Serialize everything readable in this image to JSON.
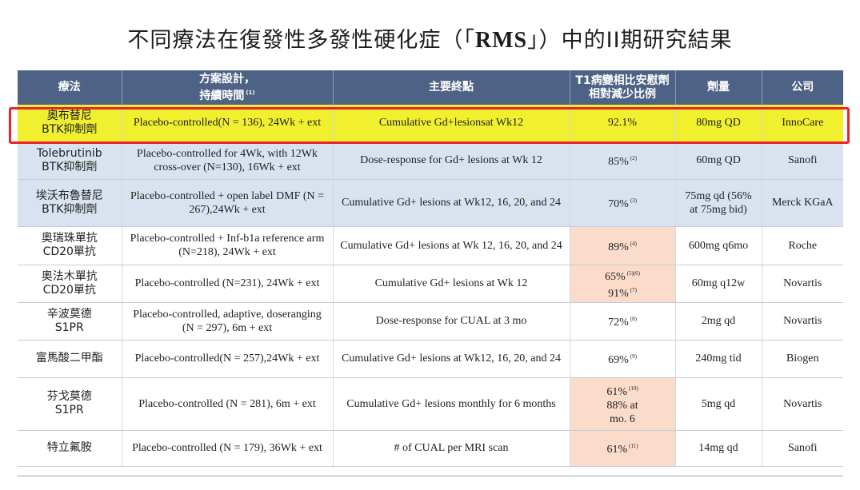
{
  "title": {
    "before": "不同療法在復發性多發性硬化症（「",
    "abbr": "RMS",
    "after": "」）中的II期研究結果"
  },
  "table": {
    "headers": {
      "therapy": "療法",
      "design_line1": "方案設計，",
      "design_line2": "持續時間",
      "design_note": "(1)",
      "endpoint": "主要終點",
      "reduction_line1": "T1病變相比安慰劑",
      "reduction_line2": "相對減少比例",
      "dose": "劑量",
      "company": "公司"
    },
    "rows": [
      {
        "therapy": [
          "奧布替尼",
          "BTK抑制劑"
        ],
        "design": "Placebo-controlled(N = 136), 24Wk + ext",
        "endpoint": "Cumulative Gd+lesionsat Wk12",
        "reduction": [
          {
            "text": "92.1%",
            "note": ""
          }
        ],
        "dose": "80mg QD",
        "company": "InnoCare"
      },
      {
        "therapy": [
          "Tolebrutinib",
          "BTK抑制劑"
        ],
        "design": "Placebo-controlled for 4Wk, with 12Wk cross-over (N=130), 16Wk + ext",
        "endpoint": "Dose-response for Gd+ lesions at Wk 12",
        "reduction": [
          {
            "text": "85%",
            "note": "(2)"
          }
        ],
        "dose": "60mg QD",
        "company": "Sanofi"
      },
      {
        "therapy": [
          "埃沃布魯替尼",
          "BTK抑制劑"
        ],
        "design": "Placebo-controlled + open label DMF (N = 267),24Wk + ext",
        "endpoint": "Cumulative Gd+ lesions at Wk12, 16, 20, and 24",
        "reduction": [
          {
            "text": "70%",
            "note": "(3)"
          }
        ],
        "dose": "75mg qd (56% at 75mg bid)",
        "company": "Merck KGaA"
      },
      {
        "therapy": [
          "奧瑞珠單抗",
          "CD20單抗"
        ],
        "design": "Placebo-controlled + Inf-b1a reference arm (N=218), 24Wk + ext",
        "endpoint": "Cumulative Gd+ lesions at Wk 12, 16, 20, and 24",
        "reduction": [
          {
            "text": "89%",
            "note": "(4)"
          }
        ],
        "dose": "600mg q6mo",
        "company": "Roche"
      },
      {
        "therapy": [
          "奧法木單抗",
          "CD20單抗"
        ],
        "design": "Placebo-controlled (N=231), 24Wk + ext",
        "endpoint": "Cumulative Gd+ lesions at Wk 12",
        "reduction": [
          {
            "text": "65%",
            "note": "(5)(6)"
          },
          {
            "text": "91%",
            "note": "(7)"
          }
        ],
        "dose": "60mg q12w",
        "company": "Novartis"
      },
      {
        "therapy": [
          "辛波莫德",
          "S1PR"
        ],
        "design": "Placebo-controlled, adaptive, doseranging (N = 297), 6m + ext",
        "endpoint": "Dose-response for CUAL at 3 mo",
        "reduction": [
          {
            "text": "72%",
            "note": "(8)"
          }
        ],
        "dose": "2mg qd",
        "company": "Novartis"
      },
      {
        "therapy": [
          "富馬酸二甲酯"
        ],
        "design": "Placebo-controlled(N = 257),24Wk + ext",
        "endpoint": "Cumulative Gd+ lesions at Wk12, 16, 20, and 24",
        "reduction": [
          {
            "text": "69%",
            "note": "(9)"
          }
        ],
        "dose": "240mg tid",
        "company": "Biogen"
      },
      {
        "therapy": [
          "芬戈莫德",
          "S1PR"
        ],
        "design": "Placebo-controlled (N = 281), 6m + ext",
        "endpoint": "Cumulative Gd+ lesions monthly for 6 months",
        "reduction": [
          {
            "text": "61%",
            "note": "(10)"
          },
          {
            "text": "88% at",
            "note": ""
          },
          {
            "text": "mo. 6",
            "note": ""
          }
        ],
        "dose": "5mg qd",
        "company": "Novartis"
      },
      {
        "therapy": [
          "特立氟胺"
        ],
        "design": "Placebo-controlled (N = 179), 36Wk + ext",
        "endpoint": "# of CUAL per MRI scan",
        "reduction": [
          {
            "text": "61%",
            "note": "(11)"
          }
        ],
        "dose": "14mg qd",
        "company": "Sanofi"
      }
    ]
  },
  "style": {
    "header_bg": "#4d6284",
    "highlight_row": "#f0f02f",
    "blue_row": "#d8e3ef",
    "pink_cell": "#fbdccb",
    "highlight_border": "#e8242a"
  }
}
